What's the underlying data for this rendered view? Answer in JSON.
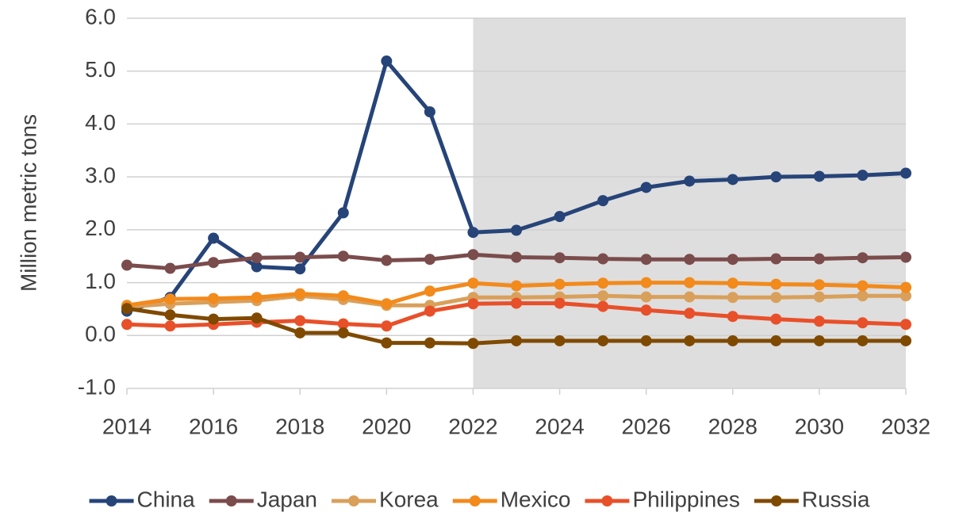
{
  "chart_data": {
    "type": "line",
    "y_label": "Million metric tons",
    "x": [
      2014,
      2015,
      2016,
      2017,
      2018,
      2019,
      2020,
      2021,
      2022,
      2023,
      2024,
      2025,
      2026,
      2027,
      2028,
      2029,
      2030,
      2031,
      2032
    ],
    "series": [
      {
        "name": "China",
        "color": "#264478",
        "values": [
          0.46,
          0.72,
          1.84,
          1.3,
          1.26,
          2.32,
          5.19,
          4.23,
          1.95,
          1.99,
          2.25,
          2.55,
          2.8,
          2.92,
          2.95,
          3.0,
          3.01,
          3.03,
          3.07
        ]
      },
      {
        "name": "Japan",
        "color": "#7b4c4c",
        "values": [
          1.33,
          1.27,
          1.38,
          1.47,
          1.48,
          1.5,
          1.42,
          1.44,
          1.53,
          1.48,
          1.47,
          1.45,
          1.44,
          1.44,
          1.44,
          1.45,
          1.45,
          1.47,
          1.48
        ]
      },
      {
        "name": "Korea",
        "color": "#d9a05b",
        "values": [
          0.54,
          0.6,
          0.63,
          0.66,
          0.75,
          0.68,
          0.57,
          0.57,
          0.72,
          0.72,
          0.73,
          0.75,
          0.73,
          0.73,
          0.72,
          0.72,
          0.73,
          0.75,
          0.75
        ]
      },
      {
        "name": "Mexico",
        "color": "#f28a1c",
        "values": [
          0.57,
          0.69,
          0.7,
          0.72,
          0.79,
          0.75,
          0.6,
          0.84,
          0.99,
          0.94,
          0.97,
          0.99,
          1.0,
          1.0,
          0.99,
          0.97,
          0.96,
          0.94,
          0.91
        ]
      },
      {
        "name": "Philippines",
        "color": "#e8502a",
        "values": [
          0.21,
          0.18,
          0.21,
          0.25,
          0.28,
          0.22,
          0.18,
          0.46,
          0.6,
          0.61,
          0.61,
          0.55,
          0.48,
          0.42,
          0.36,
          0.31,
          0.27,
          0.24,
          0.21
        ]
      },
      {
        "name": "Russia",
        "color": "#7f4a00",
        "values": [
          0.51,
          0.39,
          0.31,
          0.33,
          0.05,
          0.05,
          -0.14,
          -0.14,
          -0.15,
          -0.1,
          -0.1,
          -0.1,
          -0.1,
          -0.1,
          -0.1,
          -0.1,
          -0.1,
          -0.1,
          -0.1
        ]
      }
    ],
    "xlim": [
      2014,
      2032
    ],
    "xticks": [
      2014,
      2016,
      2018,
      2020,
      2022,
      2024,
      2026,
      2028,
      2030,
      2032
    ],
    "ylim": [
      -1,
      6
    ],
    "yticks": [
      {
        "value": -1,
        "label": "-1.0"
      },
      {
        "value": 0,
        "label": "0.0"
      },
      {
        "value": 1,
        "label": "1.0"
      },
      {
        "value": 2,
        "label": "2.0"
      },
      {
        "value": 3,
        "label": "3.0"
      },
      {
        "value": 4,
        "label": "4.0"
      },
      {
        "value": 5,
        "label": "5.0"
      },
      {
        "value": 6,
        "label": "6.0"
      }
    ],
    "shaded_xrange": [
      2022,
      2032
    ],
    "grid": true,
    "legend": "bottom"
  }
}
